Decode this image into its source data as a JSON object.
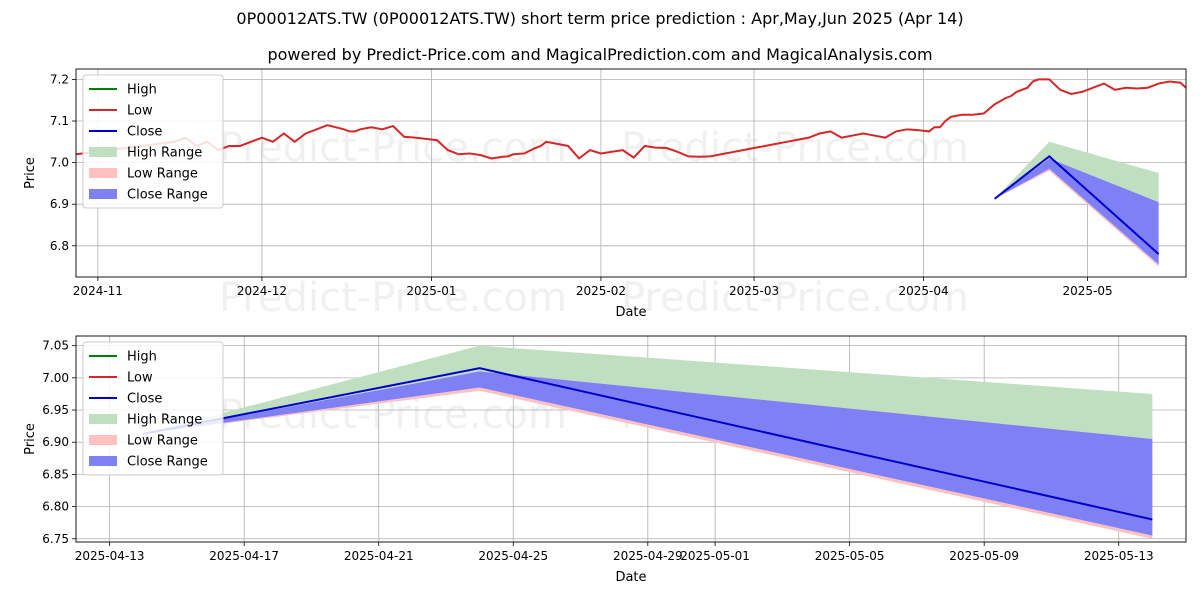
{
  "title": "0P00012ATS.TW (0P00012ATS.TW) short term price prediction : Apr,May,Jun 2025 (Apr 14)",
  "subtitle": "powered by Predict-Price.com and MagicalPrediction.com and MagicalAnalysis.com",
  "watermark": "Predict-Price.com",
  "colors": {
    "high": "#008000",
    "low": "#d62728",
    "close": "#0000cc",
    "high_range": "#c0dfc0",
    "low_range": "#ffc0c0",
    "close_range": "#8080f5"
  },
  "chart_data": [
    {
      "type": "line",
      "xlabel": "Date",
      "ylabel": "Price",
      "x_start": "2024-10-28",
      "xlim": [
        "2024-10-28",
        "2025-05-19"
      ],
      "ylim": [
        6.725,
        7.225
      ],
      "xticks": [
        "2024-11",
        "2024-12",
        "2025-01",
        "2025-02",
        "2025-03",
        "2025-04",
        "2025-05"
      ],
      "xtick_dates": [
        "2024-11-01",
        "2024-12-01",
        "2025-01-01",
        "2025-02-01",
        "2025-03-01",
        "2025-04-01",
        "2025-05-01"
      ],
      "yticks": [
        "6.8",
        "6.9",
        "7.0",
        "7.1",
        "7.2"
      ],
      "ytick_values": [
        6.8,
        6.9,
        7.0,
        7.1,
        7.2
      ],
      "grid": true,
      "legend": {
        "position": "top-left",
        "entries": [
          "High",
          "Low",
          "Close",
          "High Range",
          "Low Range",
          "Close Range"
        ]
      },
      "history": {
        "x": [
          0,
          6,
          12,
          18,
          20,
          22,
          24,
          26,
          28,
          30,
          32,
          34,
          36,
          38,
          40,
          41,
          42,
          46,
          49,
          50,
          51,
          52,
          54,
          56,
          58,
          60,
          62,
          64,
          66,
          68,
          70,
          72,
          74,
          76,
          77,
          78,
          79,
          80,
          82,
          84,
          85,
          86,
          88,
          90,
          92,
          94,
          96,
          98,
          100,
          102,
          104,
          106,
          108,
          110,
          112,
          114,
          116,
          118,
          120,
          122,
          124,
          126,
          128,
          130,
          132,
          134,
          136,
          138,
          140,
          142,
          144,
          146,
          148,
          150,
          152,
          154,
          156,
          157,
          158,
          159,
          160,
          162,
          164,
          166,
          168,
          170,
          171,
          172,
          174,
          175,
          176,
          178,
          180,
          182,
          184,
          186,
          188,
          190,
          192,
          194,
          196,
          198,
          200,
          202,
          203,
          204,
          205,
          206,
          208,
          210,
          212
        ],
        "y": [
          7.02,
          7.03,
          7.04,
          7.05,
          7.06,
          7.04,
          7.05,
          7.03,
          7.04,
          7.04,
          7.05,
          7.06,
          7.05,
          7.07,
          7.05,
          7.06,
          7.07,
          7.09,
          7.08,
          7.075,
          7.075,
          7.08,
          7.085,
          7.08,
          7.088,
          7.062,
          7.06,
          7.057,
          7.054,
          7.03,
          7.02,
          7.022,
          7.018,
          7.01,
          7.012,
          7.014,
          7.015,
          7.02,
          7.022,
          7.035,
          7.04,
          7.05,
          7.045,
          7.04,
          7.01,
          7.03,
          7.022,
          7.026,
          7.03,
          7.012,
          7.04,
          7.036,
          7.035,
          7.026,
          7.015,
          7.014,
          7.015,
          7.02,
          7.025,
          7.03,
          7.035,
          7.04,
          7.045,
          7.05,
          7.055,
          7.06,
          7.07,
          7.075,
          7.06,
          7.065,
          7.07,
          7.065,
          7.06,
          7.075,
          7.08,
          7.078,
          7.075,
          7.085,
          7.085,
          7.1,
          7.11,
          7.115,
          7.115,
          7.118,
          7.14,
          7.155,
          7.16,
          7.17,
          7.18,
          7.195,
          7.2,
          7.2,
          7.175,
          7.165,
          7.17,
          7.18,
          7.19,
          7.175,
          7.18,
          7.178,
          7.18,
          7.19,
          7.195,
          7.192,
          7.18,
          7.185,
          7.182,
          7.175,
          7.178,
          7.18,
          7.18
        ]
      },
      "forecast": {
        "x": [
          "2025-04-14",
          "2025-04-24",
          "2025-05-14"
        ],
        "high": [
          6.913,
          7.05,
          6.975
        ],
        "low": [
          6.913,
          6.98,
          6.75
        ],
        "close_range_top": [
          6.913,
          7.01,
          6.905
        ],
        "close_range_bottom": [
          6.913,
          6.985,
          6.755
        ],
        "close": [
          6.913,
          7.015,
          6.78
        ]
      }
    },
    {
      "type": "line",
      "xlabel": "Date",
      "ylabel": "Price",
      "xlim": [
        "2025-04-12",
        "2025-05-15"
      ],
      "ylim": [
        6.745,
        7.065
      ],
      "xticks": [
        "2025-04-13",
        "2025-04-17",
        "2025-04-21",
        "2025-04-25",
        "2025-04-29",
        "2025-05-01",
        "2025-05-05",
        "2025-05-09",
        "2025-05-13"
      ],
      "xtick_dates": [
        "2025-04-13",
        "2025-04-17",
        "2025-04-21",
        "2025-04-25",
        "2025-04-29",
        "2025-05-01",
        "2025-05-05",
        "2025-05-09",
        "2025-05-13"
      ],
      "yticks": [
        "6.75",
        "6.80",
        "6.85",
        "6.90",
        "6.95",
        "7.00",
        "7.05"
      ],
      "ytick_values": [
        6.75,
        6.8,
        6.85,
        6.9,
        6.95,
        7.0,
        7.05
      ],
      "grid": true,
      "legend": {
        "position": "top-left",
        "entries": [
          "High",
          "Low",
          "Close",
          "High Range",
          "Low Range",
          "Close Range"
        ]
      },
      "forecast": {
        "x": [
          "2025-04-14",
          "2025-04-24",
          "2025-05-14"
        ],
        "high": [
          6.913,
          7.05,
          6.975
        ],
        "low": [
          6.913,
          6.98,
          6.75
        ],
        "close_range_top": [
          6.913,
          7.01,
          6.905
        ],
        "close_range_bottom": [
          6.913,
          6.985,
          6.755
        ],
        "close": [
          6.913,
          7.015,
          6.78
        ]
      }
    }
  ]
}
